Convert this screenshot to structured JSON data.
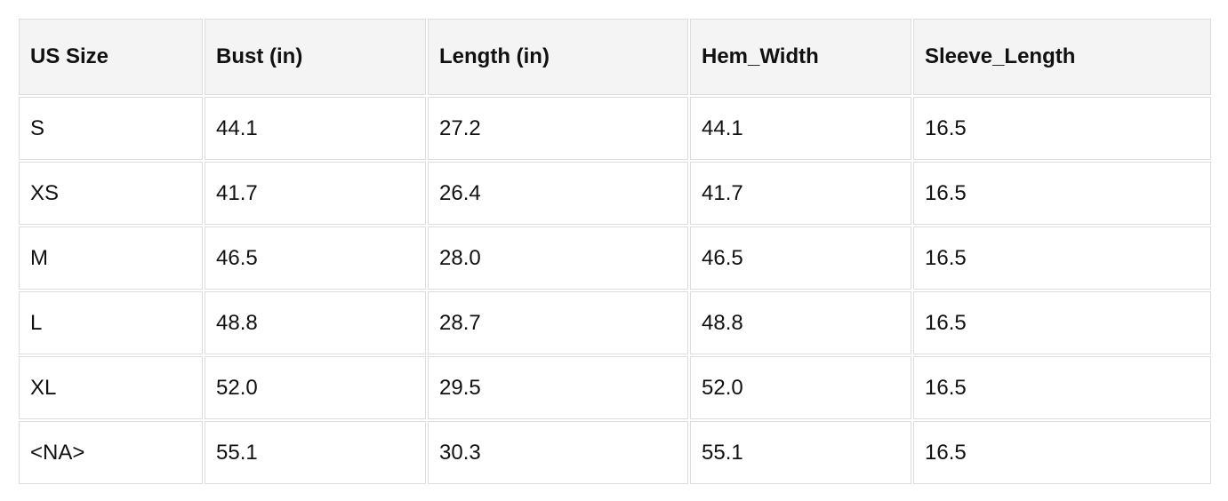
{
  "table": {
    "headers": [
      "US Size",
      "Bust (in)",
      "Length (in)",
      "Hem_Width",
      "Sleeve_Length"
    ],
    "rows": [
      [
        "S",
        "44.1",
        "27.2",
        "44.1",
        "16.5"
      ],
      [
        "XS",
        "41.7",
        "26.4",
        "41.7",
        "16.5"
      ],
      [
        "M",
        "46.5",
        "28.0",
        "46.5",
        "16.5"
      ],
      [
        "L",
        "48.8",
        "28.7",
        "48.8",
        "16.5"
      ],
      [
        "XL",
        "52.0",
        "29.5",
        "52.0",
        "16.5"
      ],
      [
        "<NA>",
        "55.1",
        "30.3",
        "55.1",
        "16.5"
      ]
    ]
  }
}
